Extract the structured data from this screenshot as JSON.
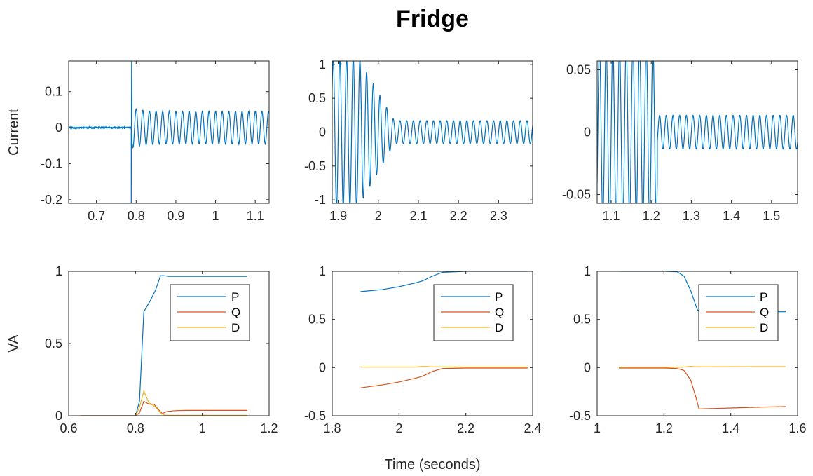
{
  "figure": {
    "title": "Fridge",
    "xlabel": "Time (seconds)"
  },
  "colors": {
    "P": "#0072BD",
    "Q": "#D95319",
    "D": "#EDB120",
    "axis": "#262626"
  },
  "chart_data": [
    {
      "type": "line",
      "ylabel": "Current",
      "xlim": [
        0.63,
        1.135
      ],
      "ylim": [
        -0.21,
        0.185
      ],
      "xticks": [
        0.7,
        0.8,
        0.9,
        1,
        1.1
      ],
      "xtick_labels": [
        "0.7",
        "0.8",
        "0.9",
        "1",
        "1.1"
      ],
      "yticks": [
        -0.2,
        -0.1,
        0,
        0.1
      ],
      "ytick_labels": [
        "-0.2",
        "-0.1",
        "0",
        "0.1"
      ],
      "series": [
        {
          "color": "#0072BD",
          "waveform": {
            "kind": "step",
            "t0": 0.7877,
            "amp_before": 0.002,
            "amp_after": 0.045,
            "freq": 60,
            "spike_min": -0.21,
            "spike_max": 0.185,
            "spike_decay": 0.02,
            "noise": 0.002
          }
        }
      ]
    },
    {
      "type": "line",
      "ylabel": "",
      "xlim": [
        1.885,
        2.385
      ],
      "ylim": [
        -1.05,
        1.05
      ],
      "xticks": [
        1.9,
        2,
        2.1,
        2.2,
        2.3
      ],
      "xtick_labels": [
        "1.9",
        "2",
        "2.1",
        "2.2",
        "2.3"
      ],
      "yticks": [
        -1,
        -0.5,
        0,
        0.5,
        1
      ],
      "ytick_labels": [
        "-1",
        "-0.5",
        "0",
        "0.5",
        "1"
      ],
      "series": [
        {
          "color": "#0072BD",
          "waveform": {
            "kind": "decay",
            "t0": 1.885,
            "amp_start": 1.1,
            "amp_end": 0.17,
            "decay_start": 1.95,
            "decay_end": 2.04,
            "freq": 60
          }
        }
      ]
    },
    {
      "type": "line",
      "ylabel": "",
      "xlim": [
        1.065,
        1.565
      ],
      "ylim": [
        -0.057,
        0.057
      ],
      "xticks": [
        1.1,
        1.2,
        1.3,
        1.4,
        1.5
      ],
      "xtick_labels": [
        "1.1",
        "1.2",
        "1.3",
        "1.4",
        "1.5"
      ],
      "yticks": [
        -0.05,
        0,
        0.05
      ],
      "ytick_labels": [
        "-0.05",
        "0",
        "0.05"
      ],
      "series": [
        {
          "color": "#0072BD",
          "waveform": {
            "kind": "step_down",
            "t0": 1.215,
            "amp_before": 0.07,
            "amp_after": 0.0135,
            "freq": 60
          }
        }
      ]
    },
    {
      "type": "line",
      "ylabel": "VA",
      "xlim": [
        0.6,
        1.2
      ],
      "ylim": [
        0,
        1
      ],
      "xticks": [
        0.6,
        0.8,
        1,
        1.2
      ],
      "xtick_labels": [
        "0.6",
        "0.8",
        "1",
        "1.2"
      ],
      "yticks": [
        0,
        0.5,
        1
      ],
      "ytick_labels": [
        "0",
        "0.5",
        "1"
      ],
      "legend": {
        "placement": "upper-right-inside",
        "entries": [
          "P",
          "Q",
          "D"
        ]
      },
      "series": [
        {
          "name": "P",
          "color": "#0072BD",
          "x": [
            0.635,
            0.8,
            0.812,
            0.825,
            0.845,
            0.86,
            0.875,
            0.885,
            0.9,
            0.95,
            1.0,
            1.05,
            1.135
          ],
          "y": [
            0,
            0,
            0.1,
            0.72,
            0.8,
            0.87,
            0.97,
            0.97,
            0.965,
            0.965,
            0.965,
            0.965,
            0.965
          ]
        },
        {
          "name": "Q",
          "color": "#D95319",
          "x": [
            0.635,
            0.8,
            0.812,
            0.825,
            0.84,
            0.855,
            0.87,
            0.88,
            0.895,
            0.92,
            0.95,
            1.0,
            1.05,
            1.135
          ],
          "y": [
            0,
            0,
            0.02,
            0.1,
            0.08,
            0.08,
            0.04,
            0.015,
            0.03,
            0.035,
            0.037,
            0.037,
            0.037,
            0.037
          ]
        },
        {
          "name": "D",
          "color": "#EDB120",
          "x": [
            0.635,
            0.8,
            0.812,
            0.825,
            0.84,
            0.86,
            0.875,
            0.885,
            0.9,
            0.95,
            1.0,
            1.135
          ],
          "y": [
            0,
            0,
            0.06,
            0.17,
            0.09,
            0.06,
            0.02,
            0.005,
            0.003,
            0.003,
            0.003,
            0.003
          ]
        }
      ]
    },
    {
      "type": "line",
      "ylabel": "",
      "xlim": [
        1.8,
        2.4
      ],
      "ylim": [
        -0.5,
        1
      ],
      "xticks": [
        1.8,
        2,
        2.2,
        2.4
      ],
      "xtick_labels": [
        "1.8",
        "2",
        "2.2",
        "2.4"
      ],
      "yticks": [
        -0.5,
        0,
        0.5,
        1
      ],
      "ytick_labels": [
        "-0.5",
        "0",
        "0.5",
        "1"
      ],
      "legend": {
        "placement": "upper-right-inside",
        "entries": [
          "P",
          "Q",
          "D"
        ]
      },
      "series": [
        {
          "name": "P",
          "color": "#0072BD",
          "x": [
            1.885,
            1.95,
            2.0,
            2.05,
            2.07,
            2.1,
            2.13,
            2.2,
            2.3,
            2.385
          ],
          "y": [
            0.79,
            0.81,
            0.84,
            0.88,
            0.9,
            0.95,
            0.99,
            1.0,
            1.0,
            1.0
          ]
        },
        {
          "name": "Q",
          "color": "#D95319",
          "x": [
            1.885,
            1.95,
            2.0,
            2.05,
            2.07,
            2.1,
            2.13,
            2.2,
            2.3,
            2.385
          ],
          "y": [
            -0.21,
            -0.18,
            -0.15,
            -0.11,
            -0.09,
            -0.04,
            -0.01,
            -0.005,
            -0.005,
            -0.005
          ]
        },
        {
          "name": "D",
          "color": "#EDB120",
          "x": [
            1.885,
            2.0,
            2.05,
            2.07,
            2.1,
            2.2,
            2.385
          ],
          "y": [
            0.005,
            0.005,
            0.005,
            0.012,
            0.008,
            0.005,
            0.005
          ]
        }
      ]
    },
    {
      "type": "line",
      "ylabel": "",
      "xlim": [
        1,
        1.6
      ],
      "ylim": [
        -0.5,
        1
      ],
      "xticks": [
        1,
        1.2,
        1.4,
        1.6
      ],
      "xtick_labels": [
        "1",
        "1.2",
        "1.4",
        "1.6"
      ],
      "yticks": [
        -0.5,
        0,
        0.5,
        1
      ],
      "ytick_labels": [
        "-0.5",
        "0",
        "0.5",
        "1"
      ],
      "legend": {
        "placement": "upper-right-inside",
        "entries": [
          "P",
          "Q",
          "D"
        ]
      },
      "series": [
        {
          "name": "P",
          "color": "#0072BD",
          "x": [
            1.065,
            1.2,
            1.24,
            1.26,
            1.28,
            1.3,
            1.31,
            1.35,
            1.4,
            1.5,
            1.565
          ],
          "y": [
            1.0,
            1.0,
            0.995,
            0.95,
            0.8,
            0.6,
            0.58,
            0.58,
            0.58,
            0.58,
            0.58
          ]
        },
        {
          "name": "Q",
          "color": "#D95319",
          "x": [
            1.065,
            1.2,
            1.24,
            1.26,
            1.28,
            1.295,
            1.305,
            1.35,
            1.4,
            1.5,
            1.565
          ],
          "y": [
            -0.005,
            -0.005,
            -0.01,
            -0.03,
            -0.13,
            -0.3,
            -0.43,
            -0.425,
            -0.42,
            -0.41,
            -0.405
          ]
        },
        {
          "name": "D",
          "color": "#EDB120",
          "x": [
            1.065,
            1.2,
            1.26,
            1.28,
            1.3,
            1.35,
            1.5,
            1.565
          ],
          "y": [
            0.002,
            0.002,
            0.005,
            0.012,
            0.008,
            0.008,
            0.01,
            0.01
          ]
        }
      ]
    }
  ]
}
